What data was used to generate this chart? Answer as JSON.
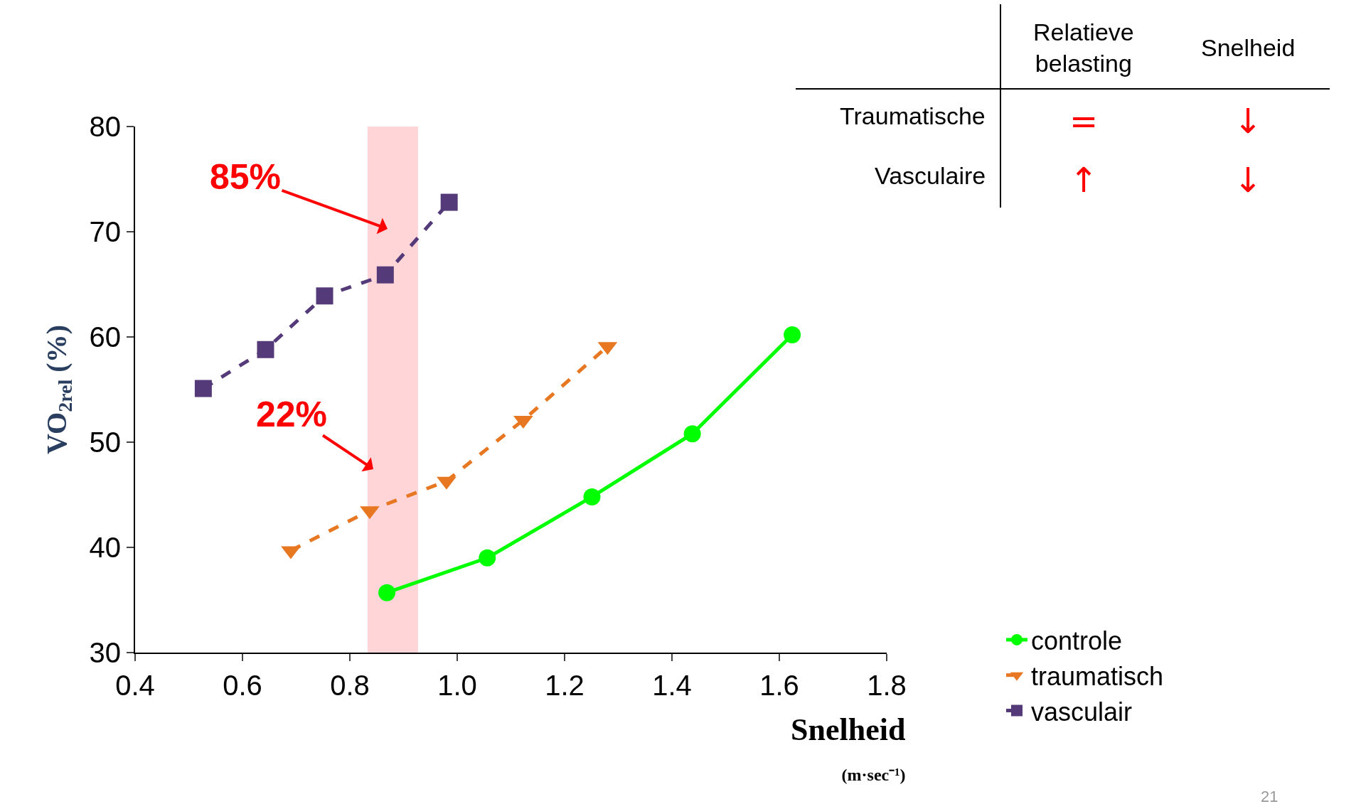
{
  "chart_data": {
    "type": "line",
    "xlabel": "Snelheid\n(m·sec⁻¹)",
    "ylabel": "VO$_{2rel}$ (%)",
    "xlim": [
      0.4,
      1.8
    ],
    "xticks": [
      {
        "value": 0.4,
        "label": "0.4"
      },
      {
        "value": 0.6,
        "label": "0.6"
      },
      {
        "value": 0.8,
        "label": "0.8"
      },
      {
        "value": 1.0,
        "label": "1.0"
      },
      {
        "value": 1.2,
        "label": "1.2"
      },
      {
        "value": 1.4,
        "label": "1.4"
      },
      {
        "value": 1.6,
        "label": "1.6"
      },
      {
        "value": 1.8,
        "label": "1.8"
      }
    ],
    "ylim": [
      30,
      80
    ],
    "yticks": [
      30,
      40,
      50,
      60,
      70,
      80
    ],
    "grid": false,
    "legend": "bottom right",
    "series": [
      {
        "name": "controle",
        "color": "#00ff00",
        "marker": "circle",
        "line_style": "solid",
        "x": [
          0.869,
          1.056,
          1.251,
          1.438,
          1.624
        ],
        "values": [
          35.7,
          39.0,
          44.8,
          50.8,
          60.2
        ]
      },
      {
        "name": "traumatisch",
        "color": "#e87722",
        "marker": "triangle",
        "line_style": "dashed",
        "x": [
          0.69,
          0.837,
          0.98,
          1.123,
          1.28
        ],
        "values": [
          39.7,
          43.5,
          46.3,
          52.1,
          59.1
        ]
      },
      {
        "name": "vasculair",
        "color": "#553a79",
        "marker": "square",
        "line_style": "dashed",
        "x": [
          0.527,
          0.643,
          0.753,
          0.866,
          0.985
        ],
        "values": [
          55.1,
          58.8,
          63.9,
          65.9,
          72.8
        ]
      }
    ],
    "bands": [
      {
        "axis": "x",
        "from": 0.833,
        "to": 0.927,
        "color": "#ffd5d8"
      }
    ],
    "annotations": [
      "85%",
      "22%",
      "Relatieve\nbelasting",
      "Snelheid",
      "Traumatische",
      "=",
      "↓",
      "Vasculaire",
      "↑",
      "↓",
      "21"
    ]
  }
}
